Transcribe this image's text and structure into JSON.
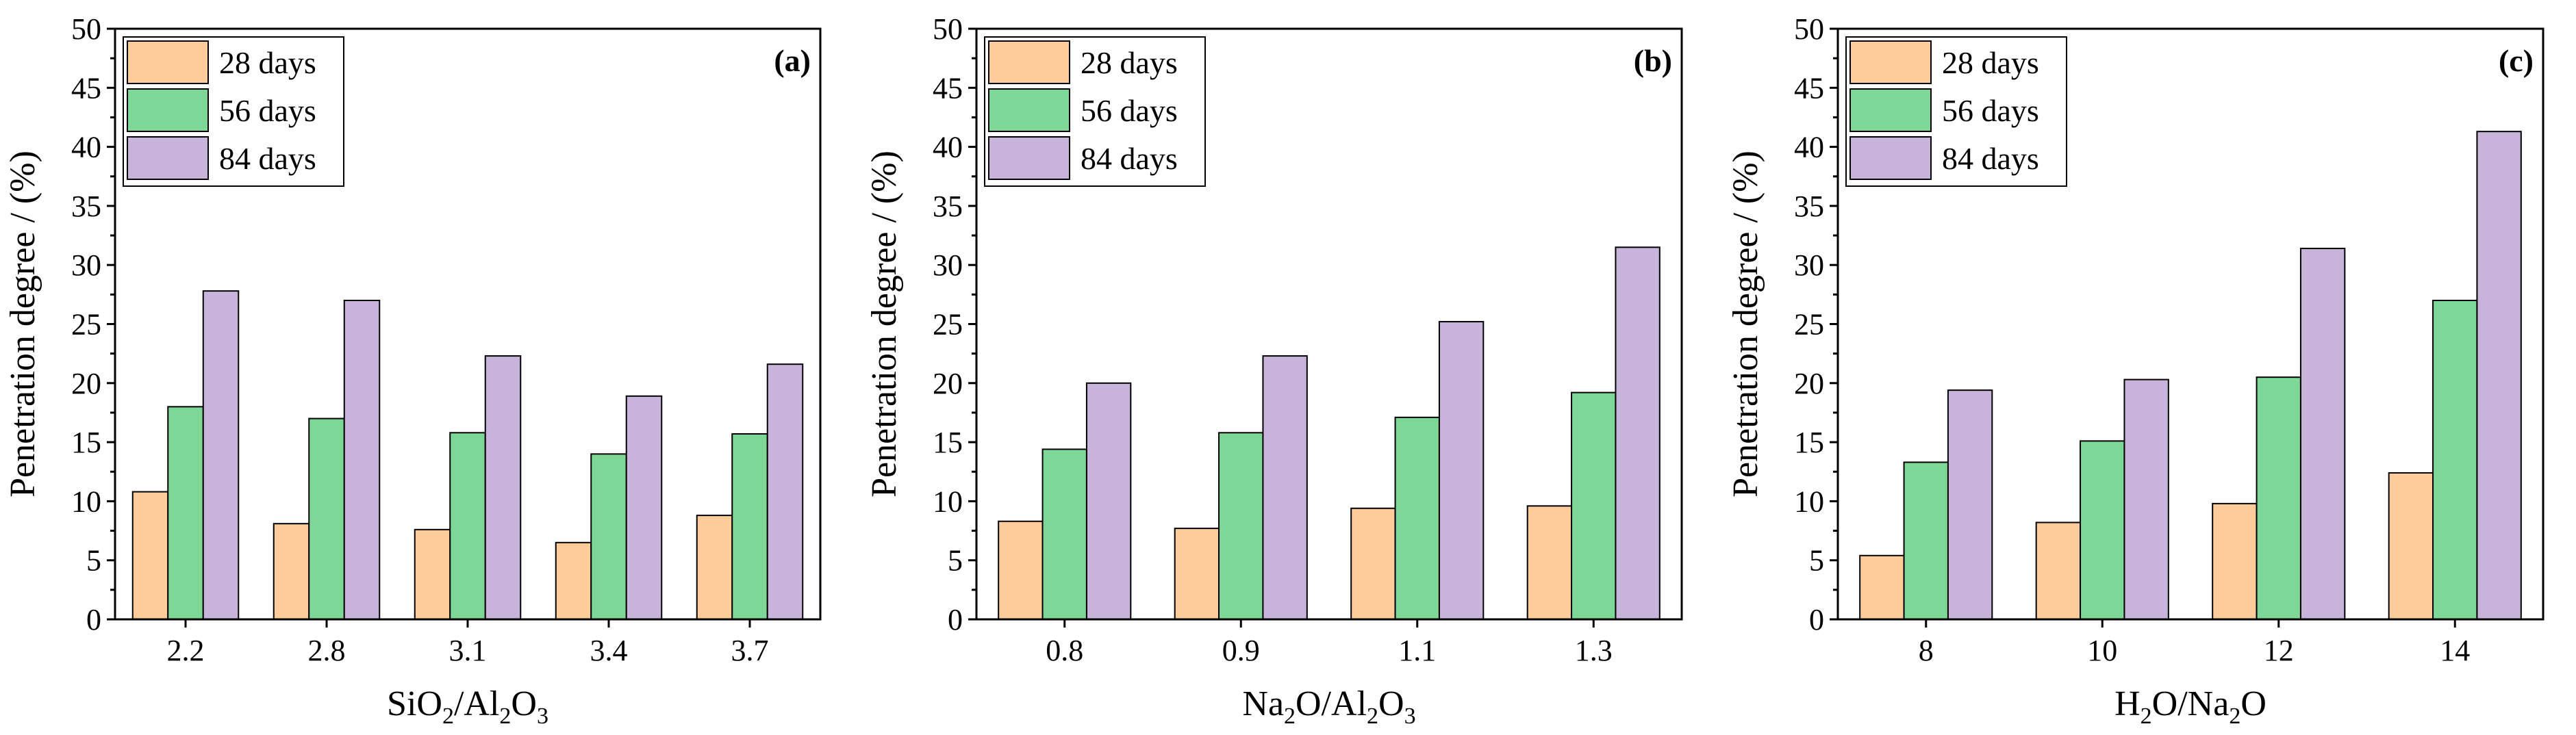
{
  "chart_data": [
    {
      "type": "bar",
      "panel_label": "(a)",
      "categories": [
        "2.2",
        "2.8",
        "3.1",
        "3.4",
        "3.7"
      ],
      "xlabel_parts": [
        {
          "t": "SiO",
          "sub": false
        },
        {
          "t": "2",
          "sub": true
        },
        {
          "t": "/Al",
          "sub": false
        },
        {
          "t": "2",
          "sub": true
        },
        {
          "t": "O",
          "sub": false
        },
        {
          "t": "3",
          "sub": true
        }
      ],
      "ylabel": "Penetration degree / (%)",
      "ylim": [
        0,
        50
      ],
      "yticks": [
        0,
        5,
        10,
        15,
        20,
        25,
        30,
        35,
        40,
        45,
        50
      ],
      "legend_position": "top-left",
      "series": [
        {
          "name": "28 days",
          "color": "#FDCC9A",
          "values": [
            10.8,
            8.1,
            7.6,
            6.5,
            8.8
          ]
        },
        {
          "name": "56 days",
          "color": "#7DD897",
          "values": [
            18.0,
            17.0,
            15.8,
            14.0,
            15.7
          ]
        },
        {
          "name": "84 days",
          "color": "#C8B4DA",
          "values": [
            27.8,
            27.0,
            22.3,
            18.9,
            21.6
          ]
        }
      ]
    },
    {
      "type": "bar",
      "panel_label": "(b)",
      "categories": [
        "0.8",
        "0.9",
        "1.1",
        "1.3"
      ],
      "xlabel_parts": [
        {
          "t": "Na",
          "sub": false
        },
        {
          "t": "2",
          "sub": true
        },
        {
          "t": "O/Al",
          "sub": false
        },
        {
          "t": "2",
          "sub": true
        },
        {
          "t": "O",
          "sub": false
        },
        {
          "t": "3",
          "sub": true
        }
      ],
      "ylabel": "Penetration degree / (%)",
      "ylim": [
        0,
        50
      ],
      "yticks": [
        0,
        5,
        10,
        15,
        20,
        25,
        30,
        35,
        40,
        45,
        50
      ],
      "legend_position": "top-left",
      "series": [
        {
          "name": "28 days",
          "color": "#FDCC9A",
          "values": [
            8.3,
            7.7,
            9.4,
            9.6
          ]
        },
        {
          "name": "56 days",
          "color": "#7DD897",
          "values": [
            14.4,
            15.8,
            17.1,
            19.2
          ]
        },
        {
          "name": "84 days",
          "color": "#C8B4DA",
          "values": [
            20.0,
            22.3,
            25.2,
            31.5
          ]
        }
      ]
    },
    {
      "type": "bar",
      "panel_label": "(c)",
      "categories": [
        "8",
        "10",
        "12",
        "14"
      ],
      "xlabel_parts": [
        {
          "t": "H",
          "sub": false
        },
        {
          "t": "2",
          "sub": true
        },
        {
          "t": "O/Na",
          "sub": false
        },
        {
          "t": "2",
          "sub": true
        },
        {
          "t": "O",
          "sub": false
        }
      ],
      "ylabel": "Penetration degree / (%)",
      "ylim": [
        0,
        50
      ],
      "yticks": [
        0,
        5,
        10,
        15,
        20,
        25,
        30,
        35,
        40,
        45,
        50
      ],
      "legend_position": "top-left",
      "series": [
        {
          "name": "28 days",
          "color": "#FDCC9A",
          "values": [
            5.4,
            8.2,
            9.8,
            12.4
          ]
        },
        {
          "name": "56 days",
          "color": "#7DD897",
          "values": [
            13.3,
            15.1,
            20.5,
            27.0
          ]
        },
        {
          "name": "84 days",
          "color": "#C8B4DA",
          "values": [
            19.4,
            20.3,
            31.4,
            41.3
          ]
        }
      ]
    }
  ]
}
